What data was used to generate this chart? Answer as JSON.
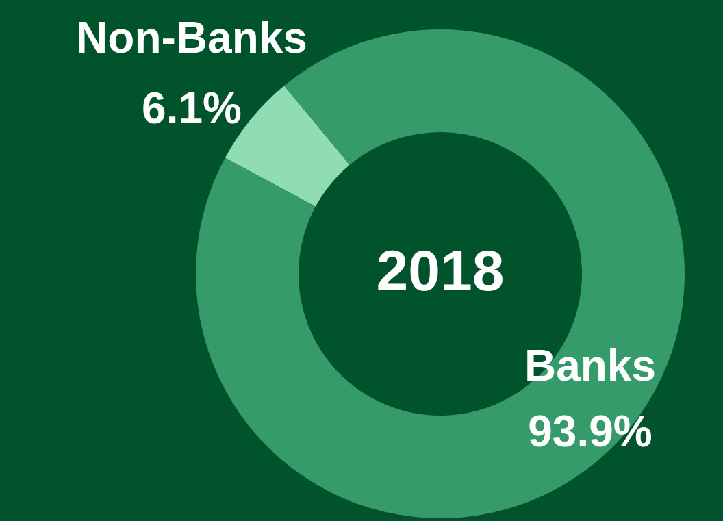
{
  "chart_data": {
    "type": "donut",
    "title": "2018",
    "categories": [
      "Non-Banks",
      "Banks"
    ],
    "values": [
      6.1,
      93.9
    ],
    "colors": [
      "#90dcb5",
      "#369b6a"
    ],
    "value_labels": [
      "6.1%",
      "93.9%"
    ],
    "legend": false
  }
}
